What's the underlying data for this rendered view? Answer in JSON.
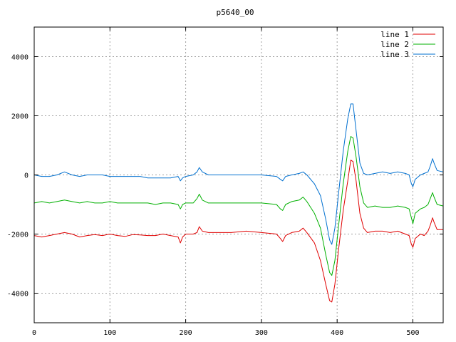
{
  "chart_data": {
    "type": "line",
    "title": "p5640_00",
    "xlabel": "",
    "ylabel": "",
    "xlim": [
      0,
      540
    ],
    "ylim": [
      -5000,
      5000
    ],
    "xticks": [
      0,
      100,
      200,
      300,
      400,
      500
    ],
    "yticks": [
      -4000,
      -2000,
      0,
      2000,
      4000
    ],
    "grid": true,
    "legend_position": "top-right",
    "series": [
      {
        "name": "line 1",
        "color": "#e00000",
        "points": [
          [
            0,
            -2050
          ],
          [
            10,
            -2100
          ],
          [
            20,
            -2050
          ],
          [
            30,
            -2000
          ],
          [
            40,
            -1950
          ],
          [
            50,
            -2000
          ],
          [
            60,
            -2100
          ],
          [
            70,
            -2050
          ],
          [
            80,
            -2020
          ],
          [
            90,
            -2050
          ],
          [
            100,
            -2000
          ],
          [
            110,
            -2050
          ],
          [
            120,
            -2080
          ],
          [
            130,
            -2020
          ],
          [
            140,
            -2030
          ],
          [
            150,
            -2050
          ],
          [
            160,
            -2050
          ],
          [
            170,
            -2000
          ],
          [
            180,
            -2050
          ],
          [
            190,
            -2100
          ],
          [
            193,
            -2300
          ],
          [
            196,
            -2100
          ],
          [
            200,
            -2000
          ],
          [
            210,
            -2000
          ],
          [
            215,
            -1950
          ],
          [
            218,
            -1750
          ],
          [
            222,
            -1900
          ],
          [
            230,
            -1950
          ],
          [
            240,
            -1950
          ],
          [
            260,
            -1950
          ],
          [
            280,
            -1900
          ],
          [
            300,
            -1950
          ],
          [
            320,
            -2000
          ],
          [
            325,
            -2150
          ],
          [
            328,
            -2250
          ],
          [
            332,
            -2050
          ],
          [
            340,
            -1950
          ],
          [
            350,
            -1900
          ],
          [
            355,
            -1800
          ],
          [
            360,
            -1950
          ],
          [
            370,
            -2300
          ],
          [
            378,
            -2900
          ],
          [
            385,
            -3700
          ],
          [
            390,
            -4250
          ],
          [
            393,
            -4300
          ],
          [
            397,
            -3700
          ],
          [
            402,
            -2500
          ],
          [
            408,
            -1200
          ],
          [
            414,
            -200
          ],
          [
            418,
            500
          ],
          [
            421,
            450
          ],
          [
            425,
            -200
          ],
          [
            430,
            -1300
          ],
          [
            435,
            -1800
          ],
          [
            440,
            -1950
          ],
          [
            450,
            -1900
          ],
          [
            460,
            -1900
          ],
          [
            470,
            -1950
          ],
          [
            480,
            -1900
          ],
          [
            490,
            -2000
          ],
          [
            495,
            -2050
          ],
          [
            498,
            -2350
          ],
          [
            500,
            -2450
          ],
          [
            503,
            -2150
          ],
          [
            510,
            -2000
          ],
          [
            515,
            -2050
          ],
          [
            520,
            -1900
          ],
          [
            523,
            -1700
          ],
          [
            526,
            -1450
          ],
          [
            528,
            -1600
          ],
          [
            532,
            -1850
          ],
          [
            540,
            -1850
          ]
        ]
      },
      {
        "name": "line 2",
        "color": "#00b000",
        "points": [
          [
            0,
            -950
          ],
          [
            10,
            -900
          ],
          [
            20,
            -950
          ],
          [
            30,
            -900
          ],
          [
            40,
            -850
          ],
          [
            50,
            -900
          ],
          [
            60,
            -950
          ],
          [
            70,
            -900
          ],
          [
            80,
            -950
          ],
          [
            90,
            -950
          ],
          [
            100,
            -900
          ],
          [
            110,
            -950
          ],
          [
            120,
            -950
          ],
          [
            130,
            -950
          ],
          [
            140,
            -950
          ],
          [
            150,
            -950
          ],
          [
            160,
            -1000
          ],
          [
            170,
            -950
          ],
          [
            180,
            -950
          ],
          [
            190,
            -1000
          ],
          [
            193,
            -1150
          ],
          [
            196,
            -1000
          ],
          [
            200,
            -950
          ],
          [
            210,
            -950
          ],
          [
            215,
            -800
          ],
          [
            218,
            -650
          ],
          [
            222,
            -850
          ],
          [
            230,
            -950
          ],
          [
            240,
            -950
          ],
          [
            260,
            -950
          ],
          [
            280,
            -950
          ],
          [
            300,
            -950
          ],
          [
            320,
            -1000
          ],
          [
            325,
            -1150
          ],
          [
            328,
            -1200
          ],
          [
            332,
            -1000
          ],
          [
            340,
            -900
          ],
          [
            350,
            -850
          ],
          [
            355,
            -750
          ],
          [
            360,
            -900
          ],
          [
            370,
            -1300
          ],
          [
            378,
            -1800
          ],
          [
            385,
            -2700
          ],
          [
            390,
            -3300
          ],
          [
            393,
            -3400
          ],
          [
            397,
            -2900
          ],
          [
            402,
            -1700
          ],
          [
            408,
            -300
          ],
          [
            414,
            800
          ],
          [
            418,
            1300
          ],
          [
            421,
            1250
          ],
          [
            425,
            600
          ],
          [
            430,
            -400
          ],
          [
            435,
            -950
          ],
          [
            440,
            -1100
          ],
          [
            450,
            -1050
          ],
          [
            460,
            -1100
          ],
          [
            470,
            -1100
          ],
          [
            480,
            -1050
          ],
          [
            490,
            -1100
          ],
          [
            495,
            -1150
          ],
          [
            498,
            -1450
          ],
          [
            500,
            -1650
          ],
          [
            503,
            -1300
          ],
          [
            510,
            -1150
          ],
          [
            515,
            -1100
          ],
          [
            520,
            -1000
          ],
          [
            523,
            -800
          ],
          [
            526,
            -600
          ],
          [
            528,
            -750
          ],
          [
            532,
            -1000
          ],
          [
            540,
            -1050
          ]
        ]
      },
      {
        "name": "line 3",
        "color": "#0070d0",
        "points": [
          [
            0,
            0
          ],
          [
            10,
            -50
          ],
          [
            20,
            -50
          ],
          [
            30,
            0
          ],
          [
            40,
            100
          ],
          [
            50,
            0
          ],
          [
            60,
            -50
          ],
          [
            70,
            0
          ],
          [
            80,
            0
          ],
          [
            90,
            0
          ],
          [
            100,
            -50
          ],
          [
            110,
            -50
          ],
          [
            120,
            -50
          ],
          [
            130,
            -50
          ],
          [
            140,
            -50
          ],
          [
            150,
            -100
          ],
          [
            160,
            -100
          ],
          [
            170,
            -100
          ],
          [
            180,
            -100
          ],
          [
            190,
            -50
          ],
          [
            193,
            -200
          ],
          [
            196,
            -100
          ],
          [
            200,
            -50
          ],
          [
            210,
            0
          ],
          [
            215,
            100
          ],
          [
            218,
            250
          ],
          [
            222,
            100
          ],
          [
            230,
            0
          ],
          [
            240,
            0
          ],
          [
            260,
            0
          ],
          [
            280,
            0
          ],
          [
            300,
            0
          ],
          [
            320,
            -50
          ],
          [
            325,
            -150
          ],
          [
            328,
            -200
          ],
          [
            332,
            -50
          ],
          [
            340,
            0
          ],
          [
            350,
            50
          ],
          [
            355,
            100
          ],
          [
            360,
            0
          ],
          [
            370,
            -300
          ],
          [
            378,
            -700
          ],
          [
            385,
            -1500
          ],
          [
            390,
            -2200
          ],
          [
            393,
            -2350
          ],
          [
            397,
            -1800
          ],
          [
            402,
            -600
          ],
          [
            408,
            800
          ],
          [
            414,
            1900
          ],
          [
            418,
            2400
          ],
          [
            421,
            2400
          ],
          [
            425,
            1500
          ],
          [
            430,
            400
          ],
          [
            435,
            50
          ],
          [
            440,
            0
          ],
          [
            450,
            50
          ],
          [
            460,
            100
          ],
          [
            470,
            50
          ],
          [
            480,
            100
          ],
          [
            490,
            50
          ],
          [
            495,
            0
          ],
          [
            498,
            -300
          ],
          [
            500,
            -400
          ],
          [
            503,
            -150
          ],
          [
            510,
            0
          ],
          [
            515,
            50
          ],
          [
            520,
            100
          ],
          [
            523,
            300
          ],
          [
            526,
            550
          ],
          [
            528,
            400
          ],
          [
            532,
            150
          ],
          [
            540,
            100
          ]
        ]
      }
    ]
  }
}
